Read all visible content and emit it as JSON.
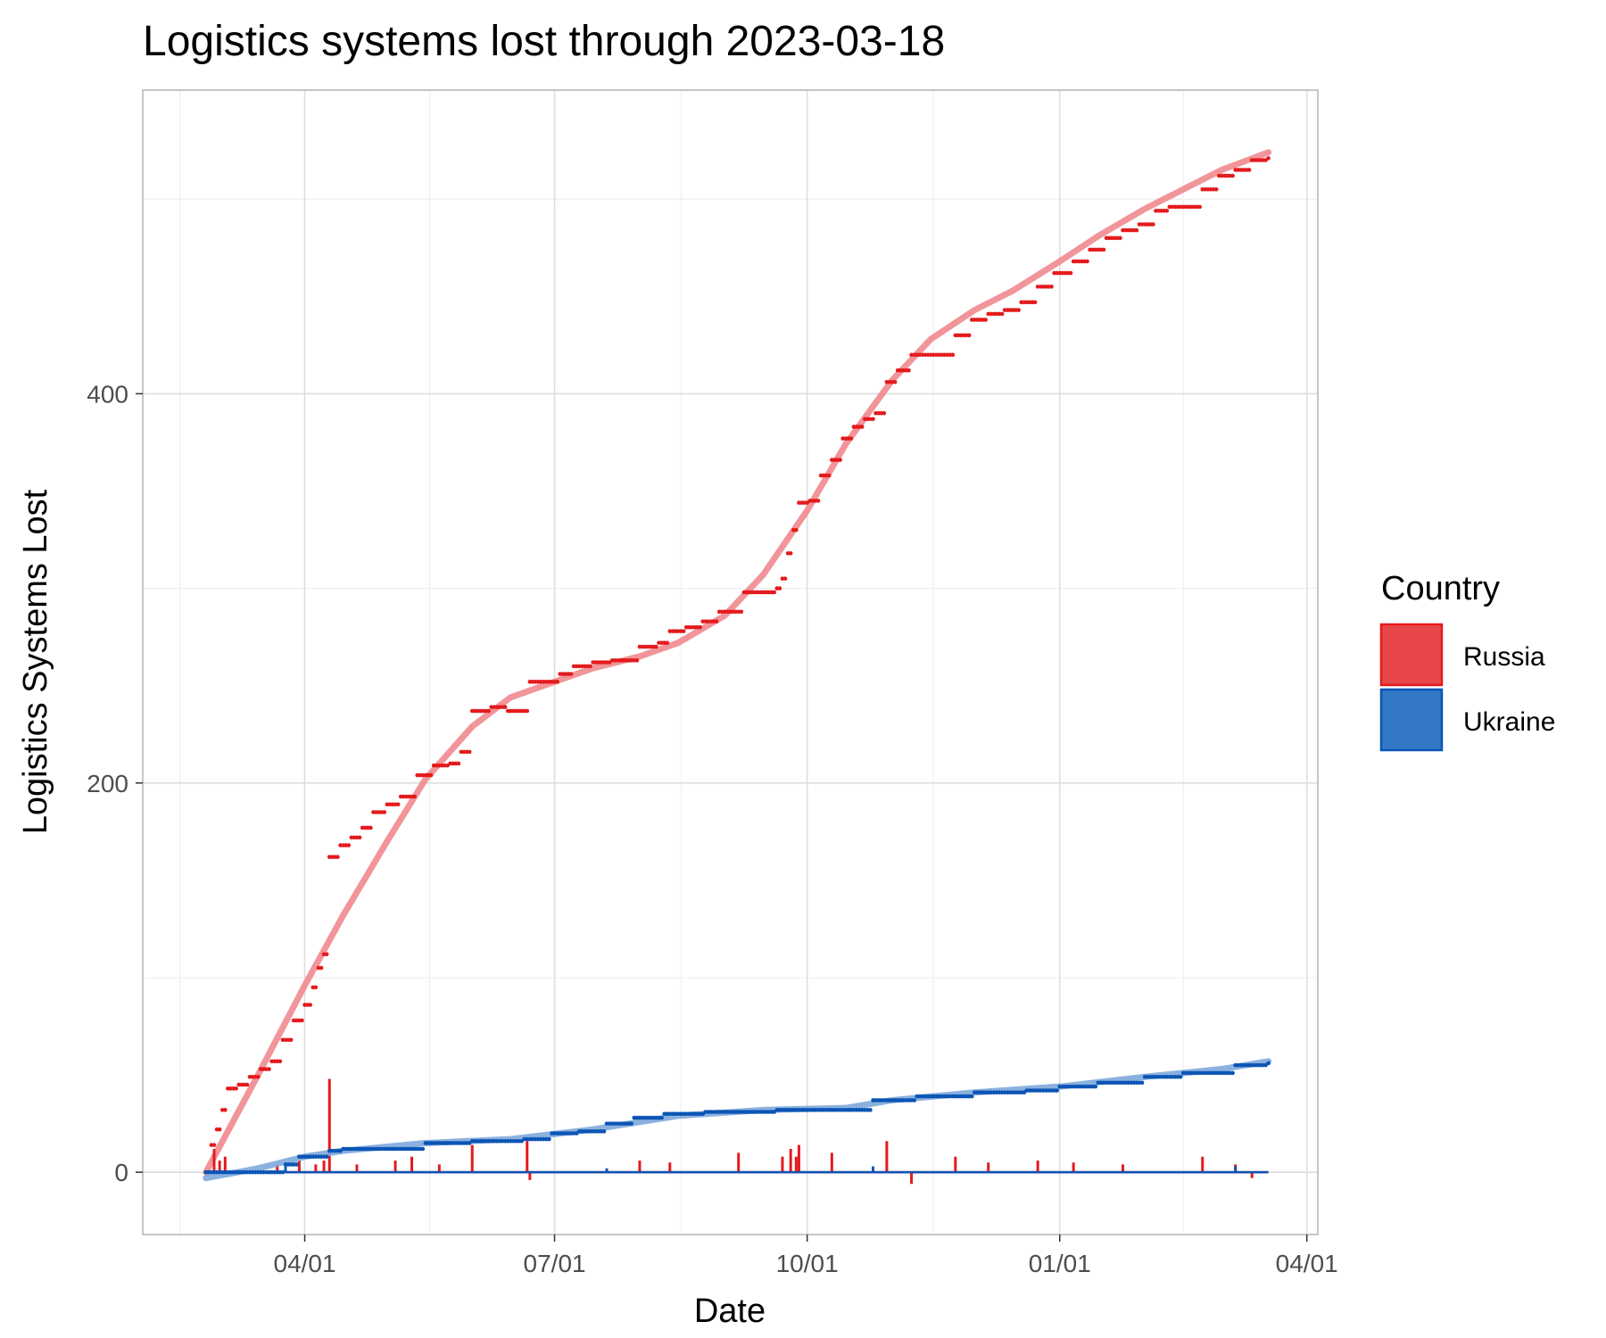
{
  "chart_data": {
    "type": "line",
    "title": "Logistics systems lost through 2023-03-18",
    "xlabel": "Date",
    "ylabel": "Logistics Systems Lost",
    "x_type": "date",
    "xlim": [
      "2022-02-01",
      "2023-04-05"
    ],
    "ylim": [
      -32,
      556
    ],
    "x_ticks": [
      {
        "value": "2022-04-01",
        "label": "04/01"
      },
      {
        "value": "2022-07-01",
        "label": "07/01"
      },
      {
        "value": "2022-10-01",
        "label": "10/01"
      },
      {
        "value": "2023-01-01",
        "label": "01/01"
      },
      {
        "value": "2023-04-01",
        "label": "04/01"
      }
    ],
    "y_ticks": [
      0,
      200,
      400
    ],
    "y_minor_ticks": [
      100,
      300,
      500
    ],
    "grid": true,
    "legend": {
      "title": "Country",
      "position": "right"
    },
    "series": [
      {
        "name": "Russia",
        "color": "#e41a1c",
        "fill_color": "#e8474a",
        "smooth_color": "#ef8a8f",
        "cumulative": [
          [
            "2022-02-24",
            0
          ],
          [
            "2022-02-26",
            14
          ],
          [
            "2022-02-28",
            22
          ],
          [
            "2022-03-02",
            32
          ],
          [
            "2022-03-04",
            43
          ],
          [
            "2022-03-08",
            45
          ],
          [
            "2022-03-12",
            49
          ],
          [
            "2022-03-16",
            53
          ],
          [
            "2022-03-20",
            57
          ],
          [
            "2022-03-24",
            68
          ],
          [
            "2022-03-28",
            78
          ],
          [
            "2022-04-01",
            86
          ],
          [
            "2022-04-04",
            95
          ],
          [
            "2022-04-06",
            105
          ],
          [
            "2022-04-08",
            112
          ],
          [
            "2022-04-10",
            162
          ],
          [
            "2022-04-14",
            168
          ],
          [
            "2022-04-18",
            172
          ],
          [
            "2022-04-22",
            177
          ],
          [
            "2022-04-26",
            185
          ],
          [
            "2022-05-01",
            189
          ],
          [
            "2022-05-06",
            193
          ],
          [
            "2022-05-12",
            204
          ],
          [
            "2022-05-18",
            209
          ],
          [
            "2022-05-24",
            210
          ],
          [
            "2022-05-28",
            216
          ],
          [
            "2022-06-01",
            237
          ],
          [
            "2022-06-08",
            239
          ],
          [
            "2022-06-14",
            237
          ],
          [
            "2022-06-20",
            237
          ],
          [
            "2022-06-22",
            252
          ],
          [
            "2022-06-30",
            252
          ],
          [
            "2022-07-03",
            256
          ],
          [
            "2022-07-08",
            260
          ],
          [
            "2022-07-15",
            262
          ],
          [
            "2022-07-22",
            263
          ],
          [
            "2022-07-28",
            263
          ],
          [
            "2022-08-01",
            270
          ],
          [
            "2022-08-08",
            272
          ],
          [
            "2022-08-12",
            278
          ],
          [
            "2022-08-18",
            280
          ],
          [
            "2022-08-24",
            283
          ],
          [
            "2022-08-30",
            288
          ],
          [
            "2022-09-05",
            288
          ],
          [
            "2022-09-08",
            298
          ],
          [
            "2022-09-15",
            298
          ],
          [
            "2022-09-20",
            300
          ],
          [
            "2022-09-22",
            305
          ],
          [
            "2022-09-24",
            318
          ],
          [
            "2022-09-26",
            330
          ],
          [
            "2022-09-28",
            344
          ],
          [
            "2022-10-02",
            345
          ],
          [
            "2022-10-06",
            358
          ],
          [
            "2022-10-10",
            366
          ],
          [
            "2022-10-14",
            377
          ],
          [
            "2022-10-18",
            383
          ],
          [
            "2022-10-22",
            387
          ],
          [
            "2022-10-26",
            390
          ],
          [
            "2022-10-30",
            406
          ],
          [
            "2022-11-03",
            412
          ],
          [
            "2022-11-08",
            420
          ],
          [
            "2022-11-14",
            420
          ],
          [
            "2022-11-20",
            420
          ],
          [
            "2022-11-24",
            430
          ],
          [
            "2022-11-30",
            438
          ],
          [
            "2022-12-06",
            441
          ],
          [
            "2022-12-12",
            443
          ],
          [
            "2022-12-18",
            447
          ],
          [
            "2022-12-24",
            455
          ],
          [
            "2022-12-30",
            462
          ],
          [
            "2023-01-06",
            468
          ],
          [
            "2023-01-12",
            474
          ],
          [
            "2023-01-18",
            480
          ],
          [
            "2023-01-24",
            484
          ],
          [
            "2023-01-30",
            487
          ],
          [
            "2023-02-05",
            494
          ],
          [
            "2023-02-10",
            496
          ],
          [
            "2023-02-14",
            496
          ],
          [
            "2023-02-18",
            496
          ],
          [
            "2023-02-22",
            505
          ],
          [
            "2023-02-28",
            512
          ],
          [
            "2023-03-06",
            515
          ],
          [
            "2023-03-12",
            520
          ],
          [
            "2023-03-18",
            521
          ]
        ],
        "smooth": [
          [
            "2022-02-24",
            0
          ],
          [
            "2022-03-15",
            50
          ],
          [
            "2022-04-01",
            96
          ],
          [
            "2022-04-15",
            132
          ],
          [
            "2022-05-01",
            170
          ],
          [
            "2022-05-15",
            202
          ],
          [
            "2022-06-01",
            229
          ],
          [
            "2022-06-15",
            244
          ],
          [
            "2022-07-01",
            252
          ],
          [
            "2022-07-15",
            259
          ],
          [
            "2022-08-01",
            265
          ],
          [
            "2022-08-15",
            272
          ],
          [
            "2022-09-01",
            286
          ],
          [
            "2022-09-15",
            307
          ],
          [
            "2022-10-01",
            340
          ],
          [
            "2022-10-15",
            374
          ],
          [
            "2022-11-01",
            407
          ],
          [
            "2022-11-15",
            428
          ],
          [
            "2022-12-01",
            443
          ],
          [
            "2022-12-15",
            453
          ],
          [
            "2023-01-01",
            468
          ],
          [
            "2023-01-15",
            481
          ],
          [
            "2023-02-01",
            495
          ],
          [
            "2023-02-15",
            505
          ],
          [
            "2023-03-01",
            515
          ],
          [
            "2023-03-18",
            524
          ]
        ],
        "daily_spikes": [
          [
            "2022-02-27",
            12
          ],
          [
            "2022-03-01",
            6
          ],
          [
            "2022-03-03",
            8
          ],
          [
            "2022-03-22",
            4
          ],
          [
            "2022-03-30",
            6
          ],
          [
            "2022-04-05",
            4
          ],
          [
            "2022-04-08",
            6
          ],
          [
            "2022-04-10",
            48
          ],
          [
            "2022-04-20",
            4
          ],
          [
            "2022-05-04",
            6
          ],
          [
            "2022-05-10",
            8
          ],
          [
            "2022-05-20",
            4
          ],
          [
            "2022-06-01",
            14
          ],
          [
            "2022-06-21",
            16
          ],
          [
            "2022-06-22",
            -4
          ],
          [
            "2022-08-01",
            6
          ],
          [
            "2022-08-12",
            5
          ],
          [
            "2022-09-06",
            10
          ],
          [
            "2022-09-22",
            8
          ],
          [
            "2022-09-25",
            12
          ],
          [
            "2022-09-27",
            8
          ],
          [
            "2022-09-28",
            14
          ],
          [
            "2022-10-10",
            10
          ],
          [
            "2022-10-30",
            16
          ],
          [
            "2022-11-08",
            -6
          ],
          [
            "2022-11-24",
            8
          ],
          [
            "2022-12-06",
            5
          ],
          [
            "2022-12-24",
            6
          ],
          [
            "2023-01-06",
            5
          ],
          [
            "2023-01-24",
            4
          ],
          [
            "2023-02-22",
            8
          ],
          [
            "2023-03-06",
            4
          ],
          [
            "2023-03-12",
            -3
          ]
        ]
      },
      {
        "name": "Ukraine",
        "color": "#0b55b5",
        "fill_color": "#3378c5",
        "smooth_color": "#7ea8dc",
        "cumulative": [
          [
            "2022-02-24",
            0
          ],
          [
            "2022-03-25",
            4
          ],
          [
            "2022-03-30",
            8
          ],
          [
            "2022-04-10",
            11
          ],
          [
            "2022-04-15",
            12
          ],
          [
            "2022-05-01",
            12
          ],
          [
            "2022-05-15",
            15
          ],
          [
            "2022-06-01",
            16
          ],
          [
            "2022-06-20",
            17
          ],
          [
            "2022-06-30",
            20
          ],
          [
            "2022-07-10",
            21
          ],
          [
            "2022-07-20",
            25
          ],
          [
            "2022-07-30",
            28
          ],
          [
            "2022-08-10",
            30
          ],
          [
            "2022-08-25",
            31
          ],
          [
            "2022-09-20",
            32
          ],
          [
            "2022-10-20",
            32
          ],
          [
            "2022-10-25",
            37
          ],
          [
            "2022-11-10",
            39
          ],
          [
            "2022-12-01",
            41
          ],
          [
            "2022-12-20",
            42
          ],
          [
            "2023-01-01",
            44
          ],
          [
            "2023-01-15",
            46
          ],
          [
            "2023-02-01",
            49
          ],
          [
            "2023-02-15",
            51
          ],
          [
            "2023-03-05",
            51
          ],
          [
            "2023-03-06",
            55
          ],
          [
            "2023-03-18",
            56
          ]
        ],
        "smooth": [
          [
            "2022-02-24",
            -3
          ],
          [
            "2022-03-15",
            2
          ],
          [
            "2022-04-01",
            8
          ],
          [
            "2022-04-15",
            11
          ],
          [
            "2022-05-15",
            15
          ],
          [
            "2022-06-15",
            17
          ],
          [
            "2022-07-15",
            22
          ],
          [
            "2022-08-15",
            29
          ],
          [
            "2022-09-15",
            32
          ],
          [
            "2022-10-15",
            33
          ],
          [
            "2022-11-01",
            37
          ],
          [
            "2022-12-01",
            41
          ],
          [
            "2023-01-01",
            44
          ],
          [
            "2023-02-01",
            49
          ],
          [
            "2023-03-01",
            53
          ],
          [
            "2023-03-18",
            57
          ]
        ],
        "daily_spikes": [
          [
            "2022-03-25",
            3
          ],
          [
            "2022-07-20",
            2
          ],
          [
            "2022-10-25",
            3
          ],
          [
            "2023-03-06",
            3
          ]
        ]
      }
    ]
  }
}
